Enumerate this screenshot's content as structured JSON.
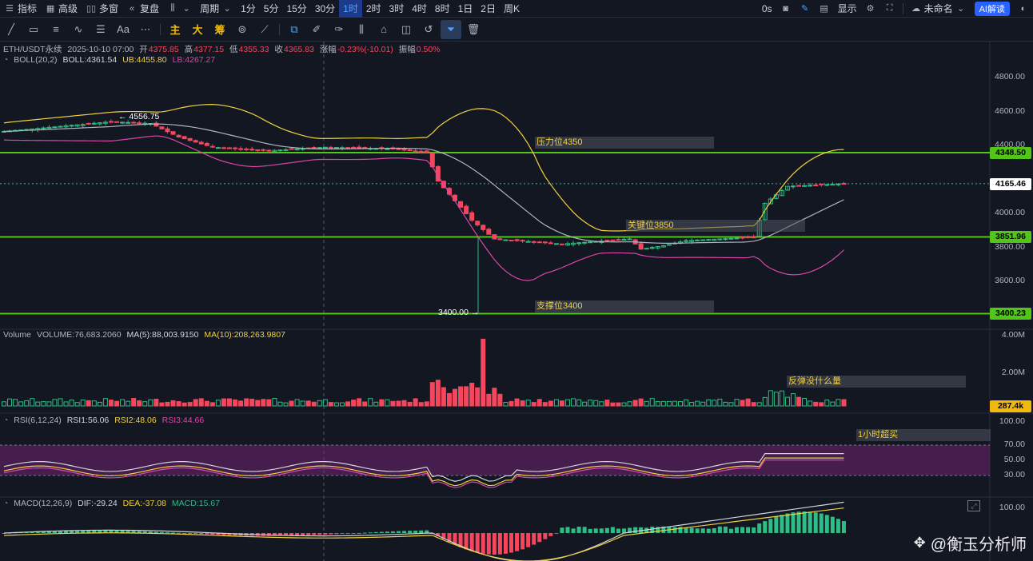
{
  "toolbar": {
    "indicator": "指标",
    "advanced": "高级",
    "multi_window": "多窗",
    "replay": "复盘",
    "period": "周期",
    "timeframes": [
      "1分",
      "5分",
      "15分",
      "30分",
      "1时",
      "2时",
      "3时",
      "4时",
      "8时",
      "1日",
      "2日",
      "周K"
    ],
    "active_timeframe": "1时",
    "countdown": "0s",
    "display": "显示",
    "unnamed": "未命名",
    "ai_label": "AI解读"
  },
  "drawing_tools": {
    "main": "主",
    "big": "大",
    "chips": "筹",
    "text_tool": "Aa"
  },
  "header": {
    "symbol": "ETH/USDT永续",
    "datetime": "2025-10-10 07:00",
    "open_label": "开",
    "open": "4375.85",
    "high_label": "高",
    "high": "4377.15",
    "low_label": "低",
    "low": "4355.33",
    "close_label": "收",
    "close": "4365.83",
    "change_label": "涨幅",
    "change": "-0.23%(-10.01)",
    "amplitude_label": "振幅",
    "amplitude": "0.50%"
  },
  "boll": {
    "name": "BOLL(20,2)",
    "boll": "BOLL:4361.54",
    "ub": "UB:4455.80",
    "lb": "LB:4267.27"
  },
  "volume_legend": {
    "name": "Volume",
    "volume": "VOLUME:76,683.2060",
    "ma5": "MA(5):88,003.9150",
    "ma10": "MA(10):208,263.9807"
  },
  "rsi_legend": {
    "name": "RSI(6,12,24)",
    "rsi1": "RSI1:56.06",
    "rsi2": "RSI2:48.06",
    "rsi3": "RSI3:44.66"
  },
  "macd_legend": {
    "name": "MACD(12,26,9)",
    "dif": "DIF:-29.24",
    "dea": "DEA:-37.08",
    "macd": "MACD:15.67"
  },
  "price_axis": [
    "4800.00",
    "4600.00",
    "4400.00",
    "4000.00",
    "3800.00",
    "3600.00"
  ],
  "volume_axis": [
    "4.00M",
    "2.00M"
  ],
  "rsi_axis": [
    "100.00",
    "70.00",
    "50.00",
    "30.00"
  ],
  "macd_axis": [
    "100.00"
  ],
  "level_tags": [
    {
      "value": "4348.50",
      "kind": "line"
    },
    {
      "value": "4165.46",
      "kind": "current"
    },
    {
      "value": "3851.96",
      "kind": "line"
    },
    {
      "value": "3400.23",
      "kind": "line"
    }
  ],
  "volume_tag": "287.4k",
  "annotations": {
    "high_marker": "4556.75",
    "low_marker": "3400.00",
    "resistance": "压力位4350",
    "key_level": "关键位3850",
    "support": "支撑位3400",
    "rebound_note": "反弹没什么量",
    "rsi_note": "1小时超买"
  },
  "watermark": "@衡玉分析师",
  "colors": {
    "up": "#2ebd85",
    "down": "#f6465d",
    "level_line": "#52c41a",
    "ub": "#f0d140",
    "lb": "#d946a8",
    "mid": "#b2b5be"
  }
}
